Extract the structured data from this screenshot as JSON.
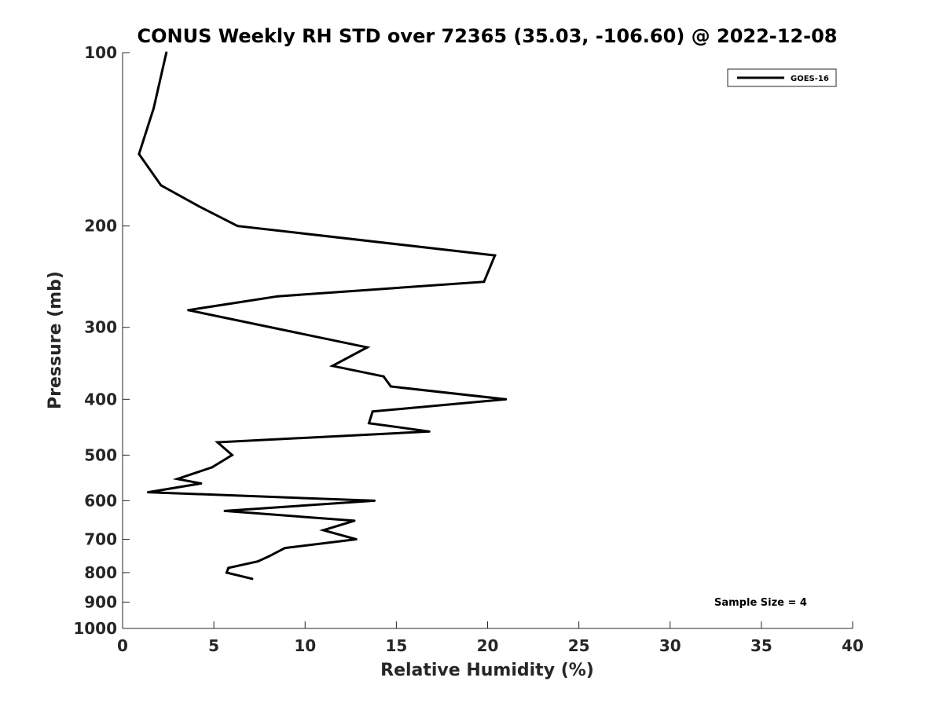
{
  "chart_data": {
    "type": "line",
    "title": "CONUS Weekly RH STD over 72365 (35.03, -106.60) @ 2022-12-08",
    "xlabel": "Relative Humidity (%)",
    "ylabel": "Pressure (mb)",
    "xlim": [
      0,
      40
    ],
    "ylim": [
      100,
      1000
    ],
    "y_scale": "log",
    "y_reversed": true,
    "grid": false,
    "legend_position": "top-right",
    "x_ticks": [
      0,
      5,
      10,
      15,
      20,
      25,
      30,
      35,
      40
    ],
    "y_ticks": [
      100,
      200,
      300,
      400,
      500,
      600,
      700,
      800,
      900,
      1000
    ],
    "series": [
      {
        "name": "GOES-16",
        "color": "#000000",
        "points": [
          {
            "x": 2.4,
            "p": 100
          },
          {
            "x": 1.7,
            "p": 125
          },
          {
            "x": 0.9,
            "p": 150
          },
          {
            "x": 2.1,
            "p": 170
          },
          {
            "x": 4.2,
            "p": 185
          },
          {
            "x": 6.3,
            "p": 200
          },
          {
            "x": 20.4,
            "p": 225
          },
          {
            "x": 19.8,
            "p": 250
          },
          {
            "x": 8.5,
            "p": 265
          },
          {
            "x": 3.6,
            "p": 280
          },
          {
            "x": 13.4,
            "p": 325
          },
          {
            "x": 11.5,
            "p": 350
          },
          {
            "x": 14.3,
            "p": 365
          },
          {
            "x": 14.7,
            "p": 380
          },
          {
            "x": 21.0,
            "p": 400
          },
          {
            "x": 13.7,
            "p": 420
          },
          {
            "x": 13.5,
            "p": 440
          },
          {
            "x": 16.8,
            "p": 455
          },
          {
            "x": 5.2,
            "p": 475
          },
          {
            "x": 6.0,
            "p": 500
          },
          {
            "x": 4.9,
            "p": 525
          },
          {
            "x": 3.0,
            "p": 550
          },
          {
            "x": 4.3,
            "p": 560
          },
          {
            "x": 1.4,
            "p": 580
          },
          {
            "x": 13.8,
            "p": 600
          },
          {
            "x": 5.6,
            "p": 625
          },
          {
            "x": 12.7,
            "p": 650
          },
          {
            "x": 11.0,
            "p": 675
          },
          {
            "x": 12.8,
            "p": 700
          },
          {
            "x": 8.9,
            "p": 725
          },
          {
            "x": 8.0,
            "p": 750
          },
          {
            "x": 7.4,
            "p": 765
          },
          {
            "x": 5.8,
            "p": 785
          },
          {
            "x": 5.7,
            "p": 800
          },
          {
            "x": 7.1,
            "p": 820
          }
        ]
      }
    ],
    "annotations": [
      {
        "text": "Sample Size = 4",
        "position": "bottom-right"
      }
    ]
  }
}
